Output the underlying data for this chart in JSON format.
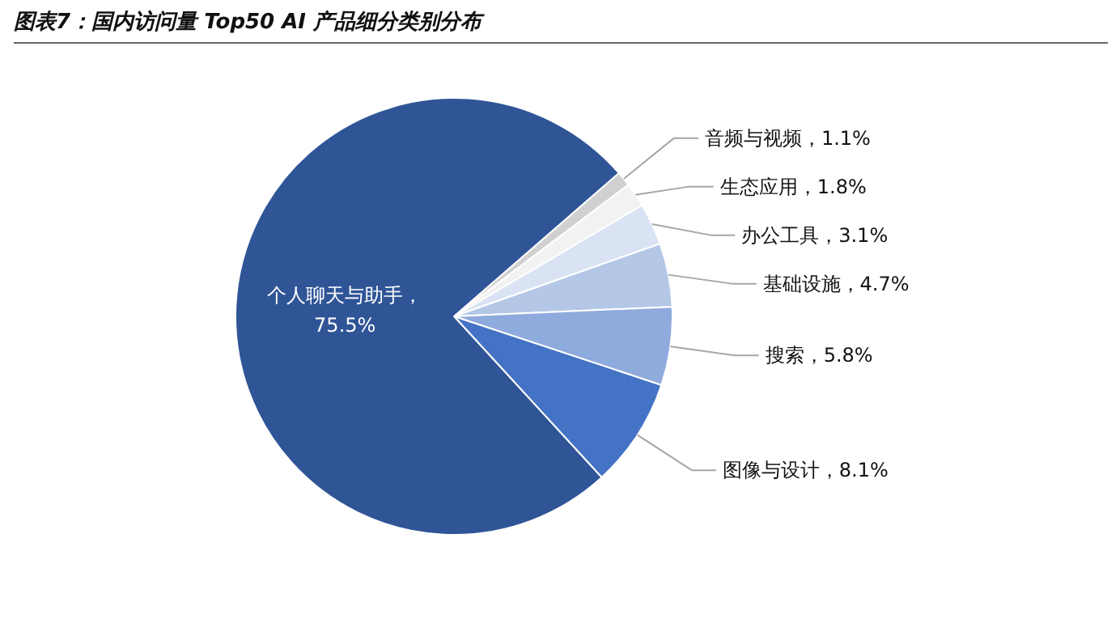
{
  "chart_data": {
    "type": "pie",
    "title": "图表7：国内访问量 Top50 AI 产品细分类别分布",
    "categories": [
      "音频与视频",
      "生态应用",
      "办公工具",
      "基础设施",
      "搜索",
      "图像与设计",
      "个人聊天与助手"
    ],
    "values": [
      1.1,
      1.8,
      3.1,
      4.7,
      5.8,
      8.1,
      75.5
    ],
    "colors": [
      "#d0d0d0",
      "#f2f2f2",
      "#dae3f3",
      "#b4c7e7",
      "#8faadc",
      "#4472c4",
      "#2f5597"
    ],
    "value_labels": [
      "，1.1%",
      "，1.8%",
      "，3.1%",
      "，4.7%",
      "，5.8%",
      "，8.1%",
      "，\n75.5%"
    ]
  }
}
